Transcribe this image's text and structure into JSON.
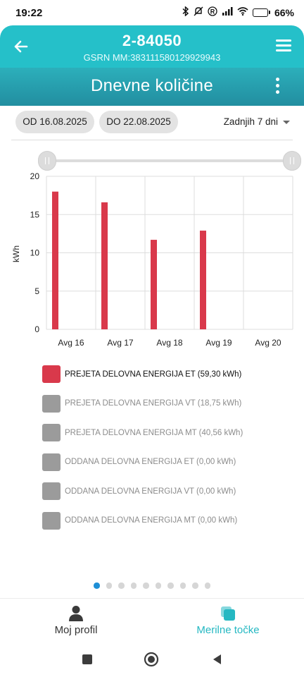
{
  "status_bar": {
    "time": "19:22",
    "battery": "66%",
    "battery_level": 0.66
  },
  "header": {
    "title": "2-84050",
    "subtitle": "GSRN MM:383111580129929943"
  },
  "section": {
    "title": "Dnevne količine"
  },
  "filters": {
    "from_label": "OD 16.08.2025",
    "to_label": "DO 22.08.2025",
    "period": "Zadnjih 7 dni"
  },
  "chart_data": {
    "type": "bar",
    "categories": [
      "Avg 16",
      "Avg 17",
      "Avg 18",
      "Avg 19",
      "Avg 20"
    ],
    "series": [
      {
        "name": "PREJETA DELOVNA ENERGIJA ET (59,30 kWh)",
        "values": [
          18.0,
          16.6,
          11.7,
          12.9,
          0
        ],
        "color": "#d9394b"
      }
    ],
    "xlabel": "",
    "ylabel": "kWh",
    "ylim": [
      0,
      20
    ],
    "yticks": [
      0,
      5,
      10,
      15,
      20
    ],
    "grid": true
  },
  "legend": {
    "items": [
      {
        "label": "PREJETA DELOVNA ENERGIJA ET (59,30 kWh)",
        "color": "#d9394b",
        "active": true
      },
      {
        "label": "PREJETA DELOVNA ENERGIJA VT (18,75 kWh)",
        "color": "#9b9b9b",
        "active": false
      },
      {
        "label": "PREJETA DELOVNA ENERGIJA MT (40,56 kWh)",
        "color": "#9b9b9b",
        "active": false
      },
      {
        "label": "ODDANA DELOVNA ENERGIJA ET (0,00 kWh)",
        "color": "#9b9b9b",
        "active": false
      },
      {
        "label": "ODDANA DELOVNA ENERGIJA VT (0,00 kWh)",
        "color": "#9b9b9b",
        "active": false
      },
      {
        "label": "ODDANA DELOVNA ENERGIJA MT (0,00 kWh)",
        "color": "#9b9b9b",
        "active": false
      }
    ]
  },
  "pager": {
    "count": 10,
    "active_index": 0
  },
  "bottom_nav": {
    "profile_label": "Moj profil",
    "meters_label": "Merilne točke"
  },
  "colors": {
    "accent": "#25c0c9",
    "bar": "#d9394b",
    "inactive": "#9b9b9b",
    "pager_active": "#1e8fd6"
  }
}
